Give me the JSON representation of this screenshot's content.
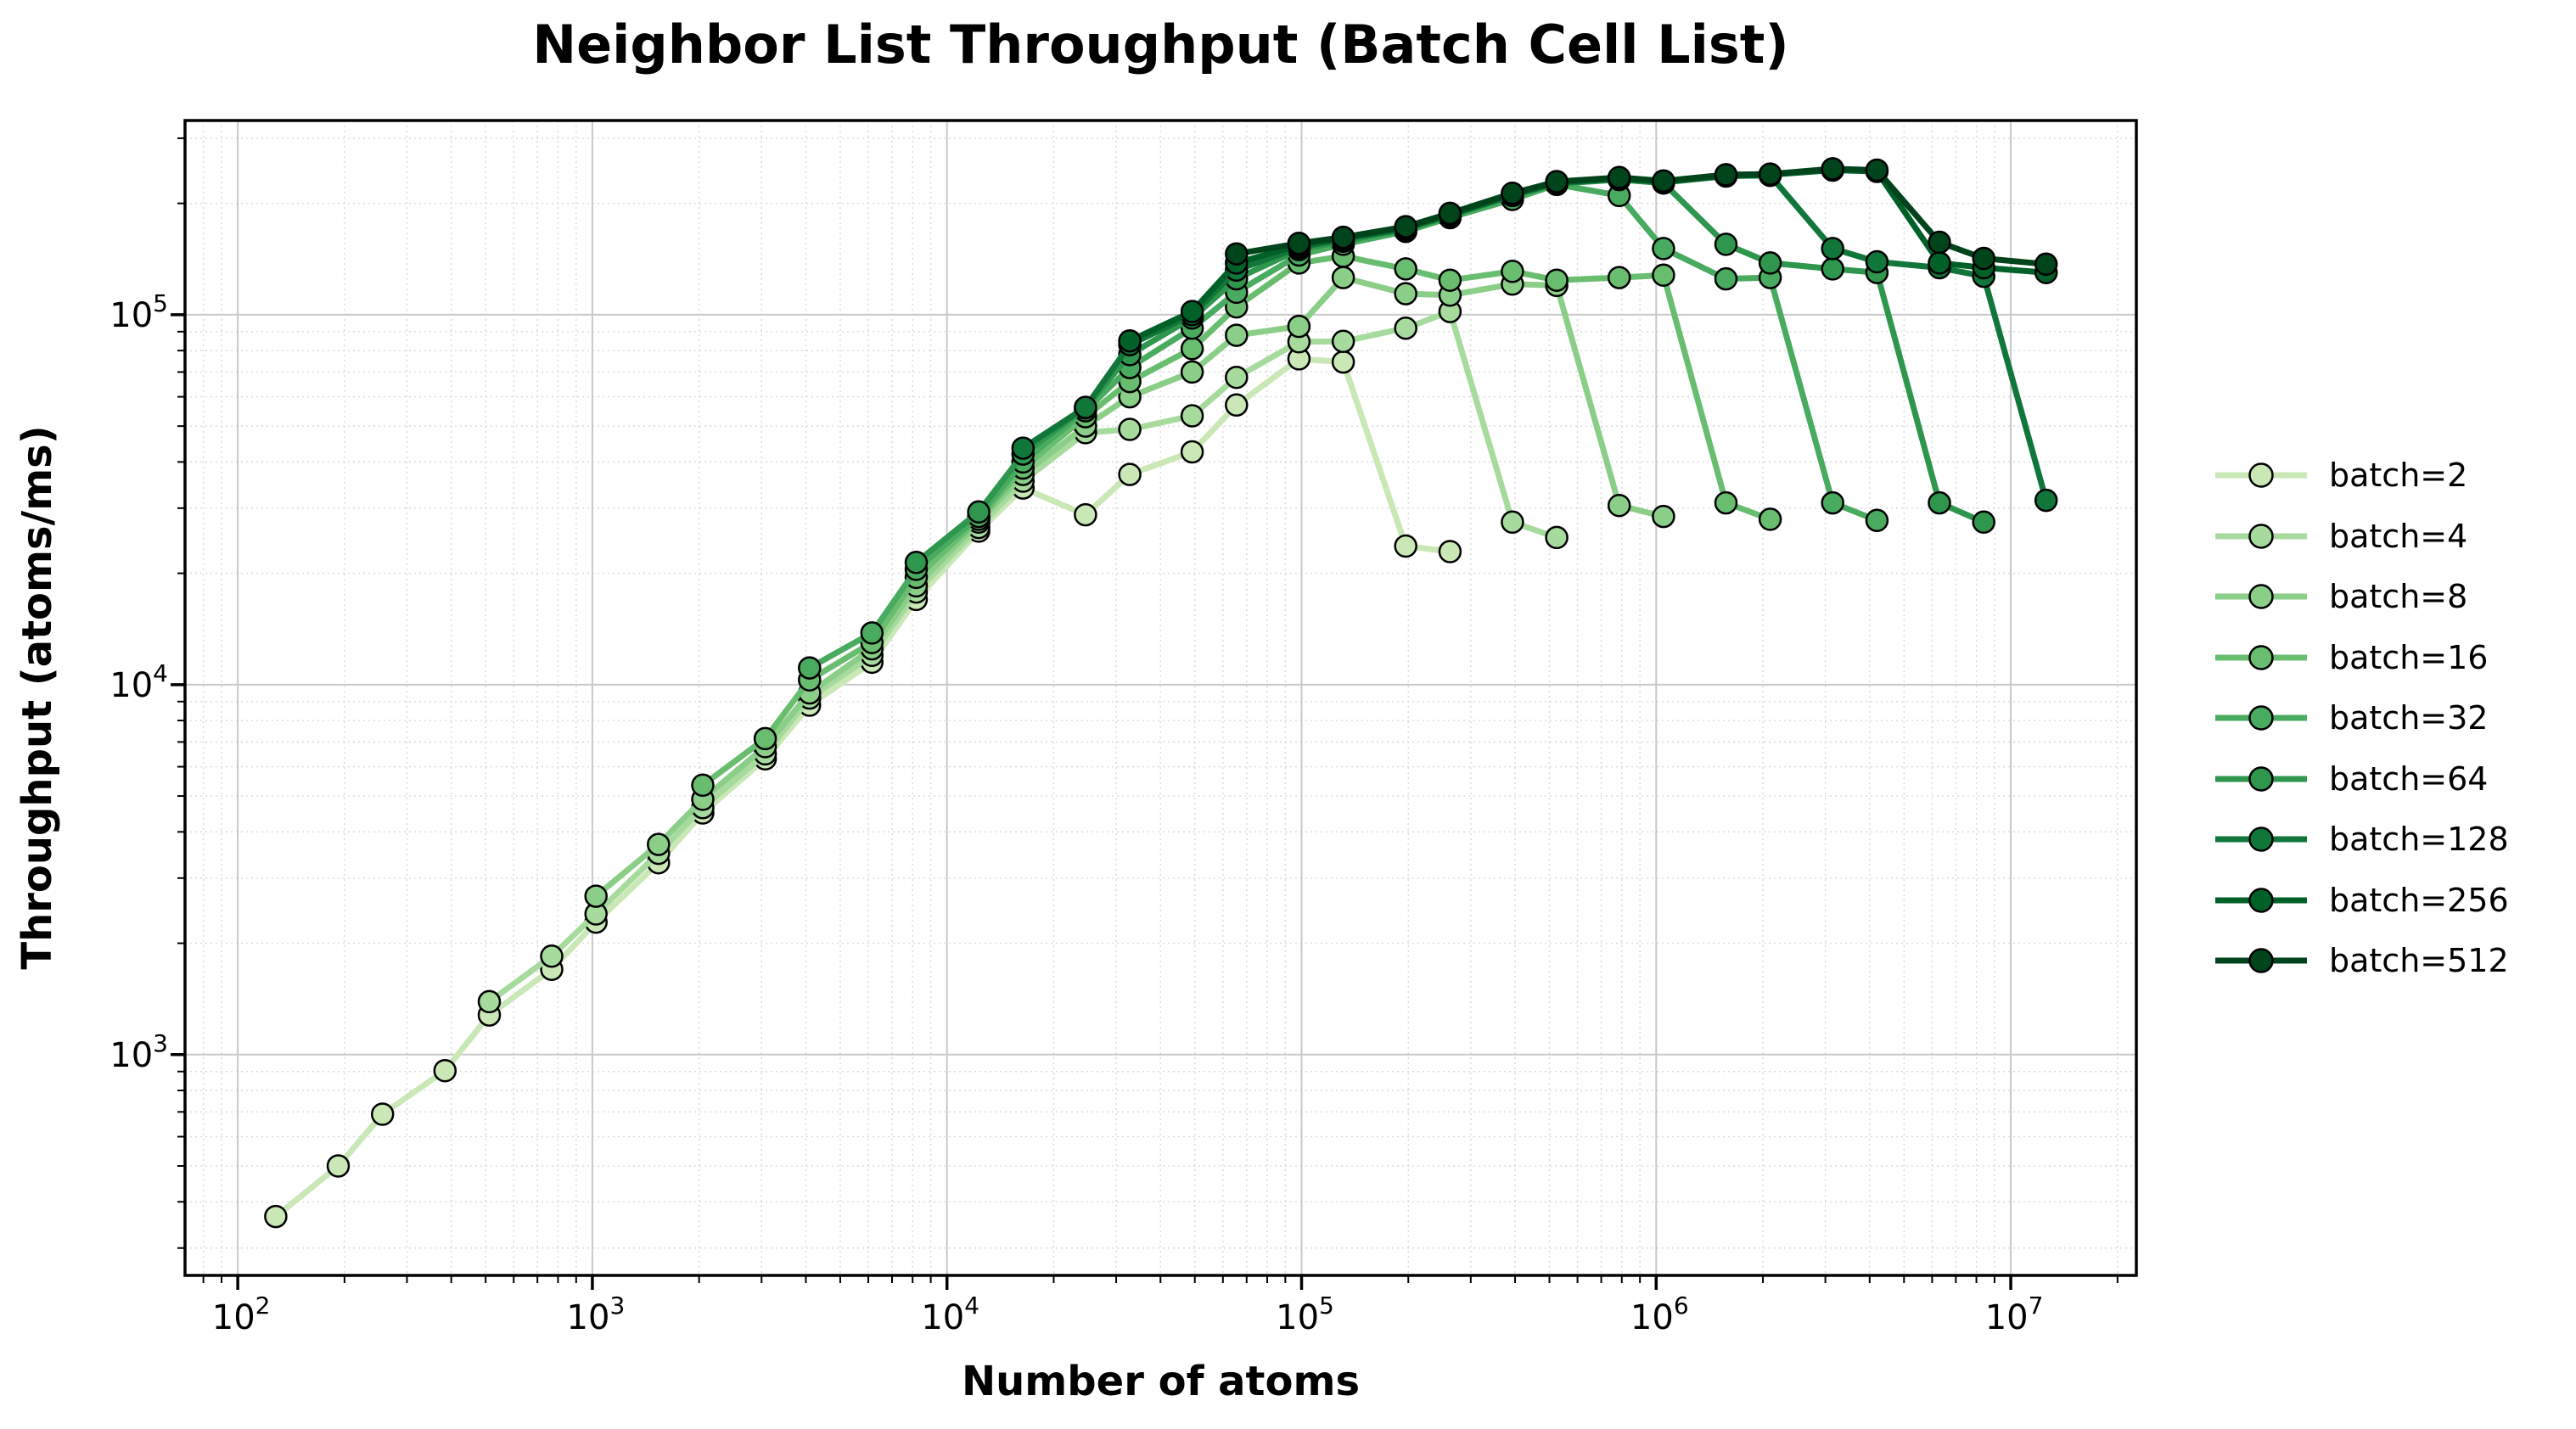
{
  "chart_data": {
    "type": "line",
    "title": "Neighbor List Throughput (Batch Cell List)",
    "xlabel": "Number of atoms",
    "ylabel": "Throughput (atoms/ms)",
    "x_scale": "log",
    "y_scale": "log",
    "xlim": [
      71,
      22600000
    ],
    "ylim": [
      253,
      335000
    ],
    "x_major_ticks": [
      100,
      1000,
      10000,
      100000,
      1000000,
      10000000
    ],
    "x_tick_labels": [
      "10^2",
      "10^3",
      "10^4",
      "10^5",
      "10^6",
      "10^7"
    ],
    "y_major_ticks": [
      1000,
      10000,
      100000
    ],
    "y_tick_labels": [
      "10^3",
      "10^4",
      "10^5"
    ],
    "grid": {
      "major": true,
      "minor": true
    },
    "legend_position": "center right",
    "marker": "circle",
    "colors": {
      "axis": "#000000",
      "major_grid": "#c9c9c9",
      "minor_grid": "#d9d9d9",
      "marker_edge": "#000000"
    },
    "series": [
      {
        "name": "batch=2",
        "batch": 2,
        "color": "#c9e8b6",
        "points": [
          [
            128,
            365
          ],
          [
            192,
            500
          ],
          [
            256,
            690
          ],
          [
            384,
            905
          ],
          [
            512,
            1280
          ],
          [
            768,
            1700
          ],
          [
            1024,
            2280
          ],
          [
            1536,
            3300
          ],
          [
            2048,
            4500
          ],
          [
            3072,
            6300
          ],
          [
            4096,
            8800
          ],
          [
            6144,
            11500
          ],
          [
            8192,
            17000
          ],
          [
            12288,
            26000
          ],
          [
            16384,
            34000
          ],
          [
            24576,
            28800
          ],
          [
            32768,
            37000
          ],
          [
            49152,
            42600
          ],
          [
            65536,
            57000
          ],
          [
            98304,
            76000
          ],
          [
            131072,
            74500
          ],
          [
            196608,
            23700
          ],
          [
            262144,
            22900
          ]
        ]
      },
      {
        "name": "batch=4",
        "batch": 4,
        "color": "#a7db9e",
        "points": [
          [
            512,
            1390
          ],
          [
            768,
            1845
          ],
          [
            1024,
            2400
          ],
          [
            1536,
            3500
          ],
          [
            2048,
            4650
          ],
          [
            3072,
            6500
          ],
          [
            4096,
            9200
          ],
          [
            6144,
            12000
          ],
          [
            8192,
            17800
          ],
          [
            12288,
            26600
          ],
          [
            16384,
            35500
          ],
          [
            24576,
            48000
          ],
          [
            32768,
            49000
          ],
          [
            49152,
            53300
          ],
          [
            65536,
            67700
          ],
          [
            98304,
            84500
          ],
          [
            131072,
            84700
          ],
          [
            196608,
            92000
          ],
          [
            262144,
            102000
          ],
          [
            393216,
            27500
          ],
          [
            524288,
            25000
          ]
        ]
      },
      {
        "name": "batch=8",
        "batch": 8,
        "color": "#8bce87",
        "points": [
          [
            1024,
            2680
          ],
          [
            1536,
            3700
          ],
          [
            2048,
            4900
          ],
          [
            3072,
            6800
          ],
          [
            4096,
            9500
          ],
          [
            6144,
            12500
          ],
          [
            8192,
            18500
          ],
          [
            12288,
            27500
          ],
          [
            16384,
            37000
          ],
          [
            24576,
            50000
          ],
          [
            32768,
            60000
          ],
          [
            49152,
            70000
          ],
          [
            65536,
            88000
          ],
          [
            98304,
            93000
          ],
          [
            131072,
            126000
          ],
          [
            196608,
            114000
          ],
          [
            262144,
            113000
          ],
          [
            393216,
            121000
          ],
          [
            524288,
            120000
          ],
          [
            786432,
            30500
          ],
          [
            1048576,
            28500
          ]
        ]
      },
      {
        "name": "batch=16",
        "batch": 16,
        "color": "#68bd6f",
        "points": [
          [
            2048,
            5350
          ],
          [
            3072,
            7150
          ],
          [
            4096,
            10300
          ],
          [
            6144,
            13000
          ],
          [
            8192,
            19500
          ],
          [
            12288,
            28000
          ],
          [
            16384,
            38500
          ],
          [
            24576,
            53000
          ],
          [
            32768,
            66000
          ],
          [
            49152,
            81000
          ],
          [
            65536,
            105000
          ],
          [
            98304,
            138000
          ],
          [
            131072,
            144000
          ],
          [
            196608,
            133000
          ],
          [
            262144,
            124000
          ],
          [
            393216,
            131000
          ],
          [
            524288,
            124000
          ],
          [
            786432,
            126000
          ],
          [
            1048576,
            128000
          ],
          [
            1572864,
            31000
          ],
          [
            2097152,
            28000
          ]
        ]
      },
      {
        "name": "batch=32",
        "batch": 32,
        "color": "#48ab5f",
        "points": [
          [
            4096,
            11100
          ],
          [
            6144,
            13800
          ],
          [
            8192,
            20500
          ],
          [
            12288,
            28500
          ],
          [
            16384,
            40000
          ],
          [
            24576,
            55000
          ],
          [
            32768,
            72000
          ],
          [
            49152,
            92000
          ],
          [
            65536,
            115000
          ],
          [
            98304,
            145000
          ],
          [
            131072,
            155000
          ],
          [
            196608,
            168000
          ],
          [
            262144,
            183000
          ],
          [
            393216,
            205000
          ],
          [
            524288,
            225000
          ],
          [
            786432,
            210000
          ],
          [
            1048576,
            151000
          ],
          [
            1572864,
            125000
          ],
          [
            2097152,
            126000
          ],
          [
            3145728,
            31000
          ],
          [
            4194304,
            27800
          ]
        ]
      },
      {
        "name": "batch=64",
        "batch": 64,
        "color": "#2e964d",
        "points": [
          [
            8192,
            21400
          ],
          [
            12288,
            29300
          ],
          [
            16384,
            42000
          ],
          [
            24576,
            56000
          ],
          [
            32768,
            78000
          ],
          [
            49152,
            98000
          ],
          [
            65536,
            125000
          ],
          [
            98304,
            150000
          ],
          [
            131072,
            158000
          ],
          [
            196608,
            170000
          ],
          [
            262144,
            185000
          ],
          [
            393216,
            210000
          ],
          [
            524288,
            226000
          ],
          [
            786432,
            232000
          ],
          [
            1048576,
            227000
          ],
          [
            1572864,
            155000
          ],
          [
            2097152,
            138000
          ],
          [
            3145728,
            133000
          ],
          [
            4194304,
            130000
          ],
          [
            6291456,
            31000
          ],
          [
            8388608,
            27500
          ]
        ]
      },
      {
        "name": "batch=128",
        "batch": 128,
        "color": "#11763a",
        "points": [
          [
            16384,
            43600
          ],
          [
            24576,
            56200
          ],
          [
            32768,
            83000
          ],
          [
            49152,
            100000
          ],
          [
            65536,
            132000
          ],
          [
            98304,
            152000
          ],
          [
            131072,
            160000
          ],
          [
            196608,
            171000
          ],
          [
            262144,
            186000
          ],
          [
            393216,
            210000
          ],
          [
            524288,
            227000
          ],
          [
            786432,
            233000
          ],
          [
            1048576,
            228000
          ],
          [
            1572864,
            237000
          ],
          [
            2097152,
            238000
          ],
          [
            3145728,
            151000
          ],
          [
            4194304,
            139000
          ],
          [
            6291456,
            134000
          ],
          [
            8388608,
            127000
          ],
          [
            12582912,
            31500
          ]
        ]
      },
      {
        "name": "batch=256",
        "batch": 256,
        "color": "#006128",
        "points": [
          [
            32768,
            85000
          ],
          [
            49152,
            102000
          ],
          [
            65536,
            138000
          ],
          [
            98304,
            154000
          ],
          [
            131072,
            161000
          ],
          [
            196608,
            172000
          ],
          [
            262144,
            187000
          ],
          [
            393216,
            212000
          ],
          [
            524288,
            228000
          ],
          [
            786432,
            234000
          ],
          [
            1048576,
            229000
          ],
          [
            1572864,
            238000
          ],
          [
            2097152,
            239000
          ],
          [
            3145728,
            246000
          ],
          [
            4194304,
            244000
          ],
          [
            6291456,
            138000
          ],
          [
            8388608,
            134000
          ],
          [
            12582912,
            130000
          ]
        ]
      },
      {
        "name": "batch=512",
        "batch": 512,
        "color": "#00441b",
        "points": [
          [
            65536,
            146000
          ],
          [
            98304,
            156000
          ],
          [
            131072,
            162000
          ],
          [
            196608,
            173000
          ],
          [
            262144,
            188000
          ],
          [
            393216,
            213000
          ],
          [
            524288,
            229000
          ],
          [
            786432,
            235000
          ],
          [
            1048576,
            230000
          ],
          [
            1572864,
            239000
          ],
          [
            2097152,
            240000
          ],
          [
            3145728,
            248000
          ],
          [
            4194304,
            246000
          ],
          [
            6291456,
            157000
          ],
          [
            8388608,
            142000
          ],
          [
            12582912,
            137000
          ]
        ]
      }
    ]
  },
  "layout_labels": {
    "legend_name": "legend",
    "plot_area_name": "plot-area"
  }
}
